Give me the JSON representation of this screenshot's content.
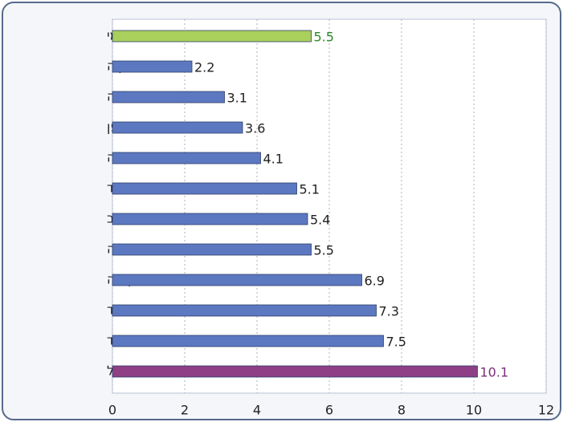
{
  "chart_data": {
    "type": "hbar",
    "categories": [
      "ממוצע עולמי",
      "טורקיה",
      "בלגיה",
      "יפן",
      "איטליה",
      "הולנד",
      "ארה\"ב",
      "אוסטרליה",
      "קנדה",
      "ניו זילנד",
      "פינלנד",
      "ישראל"
    ],
    "values": [
      5.5,
      2.2,
      3.1,
      3.6,
      4.1,
      5.1,
      5.4,
      5.5,
      6.9,
      7.3,
      7.5,
      10.1
    ],
    "colors": [
      "#a9cf5c",
      "#5b78c0",
      "#5b78c0",
      "#5b78c0",
      "#5b78c0",
      "#5b78c0",
      "#5b78c0",
      "#5b78c0",
      "#5b78c0",
      "#5b78c0",
      "#5b78c0",
      "#8e3f85"
    ],
    "label_colors": [
      "#2a8a2a",
      "#222222",
      "#222222",
      "#222222",
      "#222222",
      "#222222",
      "#222222",
      "#222222",
      "#222222",
      "#222222",
      "#222222",
      "#7a2f78"
    ],
    "xlim": [
      0,
      12
    ],
    "xticks": [
      0,
      2,
      4,
      6,
      8,
      10,
      12
    ],
    "grid": true
  }
}
